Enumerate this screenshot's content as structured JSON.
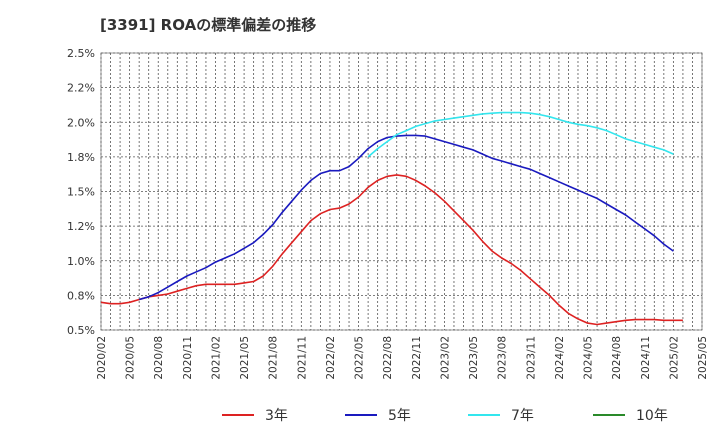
{
  "chart_data": {
    "type": "line",
    "title": "[3391]  ROAの標準偏差の推移",
    "xlabel": "",
    "ylabel": "",
    "ylim": [
      0.5,
      2.5
    ],
    "y_ticks": [
      "0.5%",
      "0.8%",
      "1.0%",
      "1.2%",
      "1.5%",
      "1.8%",
      "2.0%",
      "2.2%",
      "2.5%"
    ],
    "x_ticks": [
      "2020/02",
      "2020/05",
      "2020/08",
      "2020/11",
      "2021/02",
      "2021/05",
      "2021/08",
      "2021/11",
      "2022/02",
      "2022/05",
      "2022/08",
      "2022/11",
      "2023/02",
      "2023/05",
      "2023/08",
      "2023/11",
      "2024/02",
      "2024/05",
      "2024/08",
      "2024/11",
      "2025/02",
      "2025/05"
    ],
    "grid": true,
    "legend_position": "bottom",
    "series": [
      {
        "name": "3年",
        "color": "#dd2222",
        "start_index": 0,
        "values": [
          0.7,
          0.69,
          0.69,
          0.7,
          0.72,
          0.74,
          0.75,
          0.76,
          0.78,
          0.8,
          0.82,
          0.83,
          0.83,
          0.83,
          0.83,
          0.84,
          0.85,
          0.89,
          0.96,
          1.05,
          1.13,
          1.21,
          1.29,
          1.34,
          1.37,
          1.38,
          1.41,
          1.46,
          1.53,
          1.58,
          1.61,
          1.62,
          1.61,
          1.58,
          1.54,
          1.49,
          1.43,
          1.36,
          1.29,
          1.22,
          1.14,
          1.07,
          1.02,
          0.98,
          0.93,
          0.87,
          0.81,
          0.75,
          0.68,
          0.62,
          0.58,
          0.55,
          0.54,
          0.55,
          0.56,
          0.57,
          0.575,
          0.575,
          0.575,
          0.57,
          0.57,
          0.57
        ]
      },
      {
        "name": "5年",
        "color": "#1a1abf",
        "start_index": 0,
        "values": [
          null,
          null,
          null,
          null,
          0.72,
          0.74,
          0.77,
          0.81,
          0.85,
          0.89,
          0.92,
          0.95,
          0.99,
          1.02,
          1.05,
          1.09,
          1.13,
          1.19,
          1.26,
          1.35,
          1.43,
          1.51,
          1.58,
          1.63,
          1.65,
          1.65,
          1.68,
          1.74,
          1.81,
          1.86,
          1.89,
          1.9,
          1.905,
          1.905,
          1.9,
          1.88,
          1.86,
          1.84,
          1.82,
          1.8,
          1.77,
          1.74,
          1.72,
          1.7,
          1.68,
          1.66,
          1.63,
          1.6,
          1.57,
          1.54,
          1.51,
          1.48,
          1.45,
          1.41,
          1.37,
          1.33,
          1.28,
          1.23,
          1.18,
          1.12,
          1.07
        ]
      },
      {
        "name": "7年",
        "color": "#33e6ee",
        "start_index": 0,
        "values": [
          null,
          null,
          null,
          null,
          null,
          null,
          null,
          null,
          null,
          null,
          null,
          null,
          null,
          null,
          null,
          null,
          null,
          null,
          null,
          null,
          null,
          null,
          null,
          null,
          null,
          null,
          null,
          null,
          1.75,
          1.81,
          1.86,
          1.91,
          1.94,
          1.97,
          1.99,
          2.01,
          2.02,
          2.03,
          2.04,
          2.05,
          2.06,
          2.065,
          2.07,
          2.07,
          2.07,
          2.065,
          2.055,
          2.04,
          2.02,
          2.0,
          1.985,
          1.975,
          1.96,
          1.94,
          1.91,
          1.88,
          1.86,
          1.84,
          1.82,
          1.8,
          1.77
        ]
      },
      {
        "name": "10年",
        "color": "#2a8a2a",
        "start_index": 0,
        "values": []
      }
    ]
  }
}
